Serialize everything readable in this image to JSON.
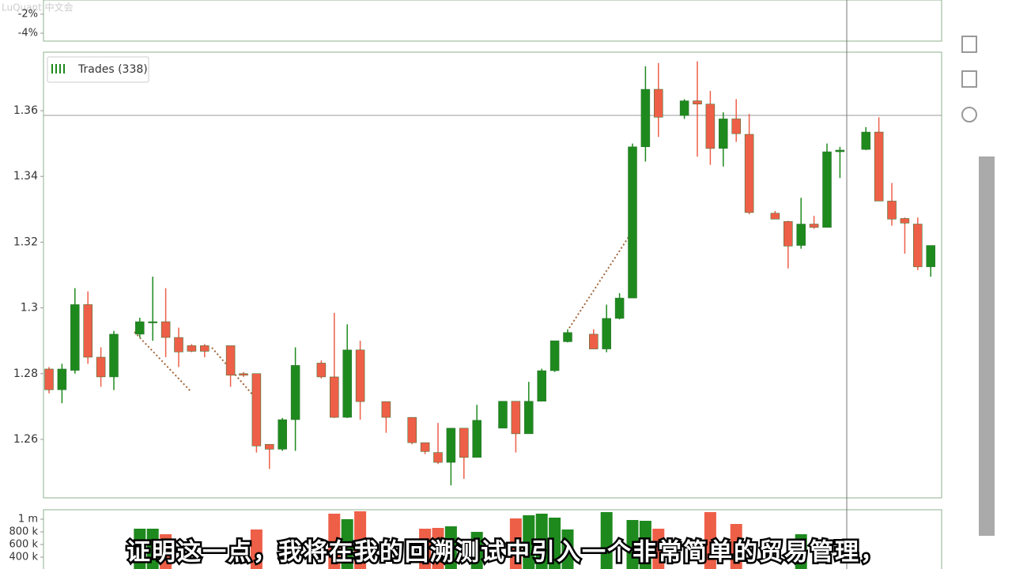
{
  "watermark": "LuQuant 中文会",
  "caption": "证明这一点，我将在我的回溯测试中引入一个非常简单的贸易管理，",
  "chart_data": [
    {
      "type": "indicator",
      "ylim": [
        -4.83,
        -0.5
      ],
      "yticks": [
        {
          "value": -2,
          "label": "-2%"
        },
        {
          "value": -4,
          "label": "-4%"
        }
      ]
    },
    {
      "type": "candlestick",
      "legend": "Trades (338)",
      "up_color": "#1e8a1e",
      "down_color": "#ee5f48",
      "ylim": [
        1.2422,
        1.3778
      ],
      "yticks": [
        1.26,
        1.28,
        1.3,
        1.32,
        1.34,
        1.36
      ],
      "open": [
        1.2814,
        1.2751,
        1.281,
        1.301,
        1.285,
        1.279,
        null,
        1.292,
        1.2958,
        1.2958,
        1.291,
        1.2885,
        1.2885,
        null,
        1.2885,
        1.28,
        1.28,
        1.2585,
        1.257,
        1.266,
        null,
        1.2832,
        1.279,
        1.2667,
        1.2872,
        null,
        1.2715,
        null,
        1.2667,
        1.259,
        1.256,
        1.253,
        1.2634,
        1.2545,
        null,
        1.2634,
        1.2716,
        1.2617,
        1.2716,
        1.2809,
        1.2897,
        null,
        1.292,
        1.2875,
        1.2968,
        1.303,
        1.349,
        1.3665,
        null,
        1.3585,
        1.363,
        1.362,
        1.3485,
        1.3575,
        1.3528,
        null,
        1.3288,
        1.3263,
        1.319,
        1.3255,
        1.3245,
        1.3475,
        null,
        1.3482,
        1.3535,
        1.3325,
        1.3272,
        1.3255,
        1.3125
      ],
      "high": [
        1.282,
        1.283,
        1.306,
        1.305,
        1.288,
        1.293,
        null,
        1.297,
        1.3095,
        1.306,
        1.294,
        1.289,
        1.289,
        null,
        1.2885,
        1.2805,
        1.28,
        1.2585,
        1.2665,
        1.288,
        null,
        1.284,
        1.2985,
        1.295,
        1.29,
        null,
        1.2715,
        null,
        1.2667,
        1.259,
        1.265,
        1.2635,
        1.2634,
        1.2705,
        null,
        1.2716,
        1.2716,
        1.2775,
        1.2815,
        1.29,
        1.2935,
        null,
        1.2935,
        1.301,
        1.3045,
        1.35,
        1.3735,
        1.3745,
        null,
        1.3635,
        1.375,
        1.366,
        1.3595,
        1.3635,
        1.359,
        null,
        1.3295,
        1.3265,
        1.3335,
        1.328,
        1.35,
        1.349,
        null,
        1.355,
        1.358,
        1.338,
        1.3275,
        1.3275,
        1.319
      ],
      "low": [
        1.274,
        1.271,
        1.28,
        1.283,
        1.276,
        1.275,
        null,
        1.291,
        1.29,
        1.285,
        1.282,
        1.2865,
        1.285,
        null,
        1.276,
        1.279,
        1.256,
        1.251,
        1.2565,
        1.2565,
        null,
        1.2785,
        1.2665,
        1.2665,
        1.266,
        null,
        1.262,
        null,
        1.2585,
        1.2555,
        1.2525,
        1.246,
        1.248,
        1.2545,
        null,
        1.2634,
        1.256,
        1.2617,
        1.2716,
        1.2805,
        1.2895,
        null,
        1.2875,
        1.2865,
        1.2965,
        1.303,
        1.3445,
        1.352,
        null,
        1.3575,
        1.346,
        1.3435,
        1.343,
        1.3505,
        1.3285,
        null,
        1.327,
        1.312,
        1.318,
        1.324,
        1.3245,
        1.3395,
        null,
        1.348,
        1.3325,
        1.325,
        1.3165,
        1.3115,
        1.3095
      ],
      "close": [
        1.2751,
        1.2814,
        1.301,
        1.285,
        1.279,
        1.292,
        null,
        1.2958,
        1.2958,
        1.291,
        1.2866,
        1.2868,
        1.2868,
        null,
        1.2795,
        1.2795,
        1.258,
        1.257,
        1.266,
        1.2825,
        null,
        1.279,
        1.2667,
        1.2872,
        1.2715,
        null,
        1.2667,
        null,
        1.259,
        1.2563,
        1.253,
        1.2634,
        1.2545,
        1.2658,
        null,
        1.2716,
        1.2617,
        1.2716,
        1.2809,
        1.29,
        1.2925,
        null,
        1.2875,
        1.2968,
        1.303,
        1.349,
        1.3665,
        1.358,
        null,
        1.363,
        1.362,
        1.3485,
        1.3575,
        1.353,
        1.329,
        null,
        1.327,
        1.3188,
        1.3255,
        1.3245,
        1.3475,
        1.348,
        null,
        1.3535,
        1.3325,
        1.327,
        1.3258,
        1.3125,
        1.319
      ]
    },
    {
      "type": "volume",
      "ylim": [
        212500,
        1150000
      ],
      "yticks": [
        {
          "value": 1000000,
          "label": "1 m"
        },
        {
          "value": 800000,
          "label": "800 k"
        },
        {
          "value": 600000,
          "label": "600 k"
        },
        {
          "value": 400000,
          "label": "400 k"
        }
      ],
      "values": [
        null,
        null,
        null,
        null,
        null,
        null,
        null,
        850000,
        850000,
        762500,
        null,
        null,
        null,
        null,
        null,
        null,
        837500,
        null,
        null,
        null,
        null,
        null,
        1087500,
        1000000,
        1125000,
        null,
        null,
        null,
        null,
        850000,
        862500,
        887500,
        null,
        800000,
        null,
        null,
        1012500,
        1062500,
        1087500,
        1025000,
        837500,
        null,
        null,
        1112500,
        null,
        987500,
        975000,
        850000,
        null,
        null,
        null,
        1112500,
        null,
        925000,
        null,
        null,
        null,
        null,
        762500,
        null,
        null,
        null,
        null,
        null,
        null,
        null,
        null,
        null,
        null
      ]
    }
  ]
}
